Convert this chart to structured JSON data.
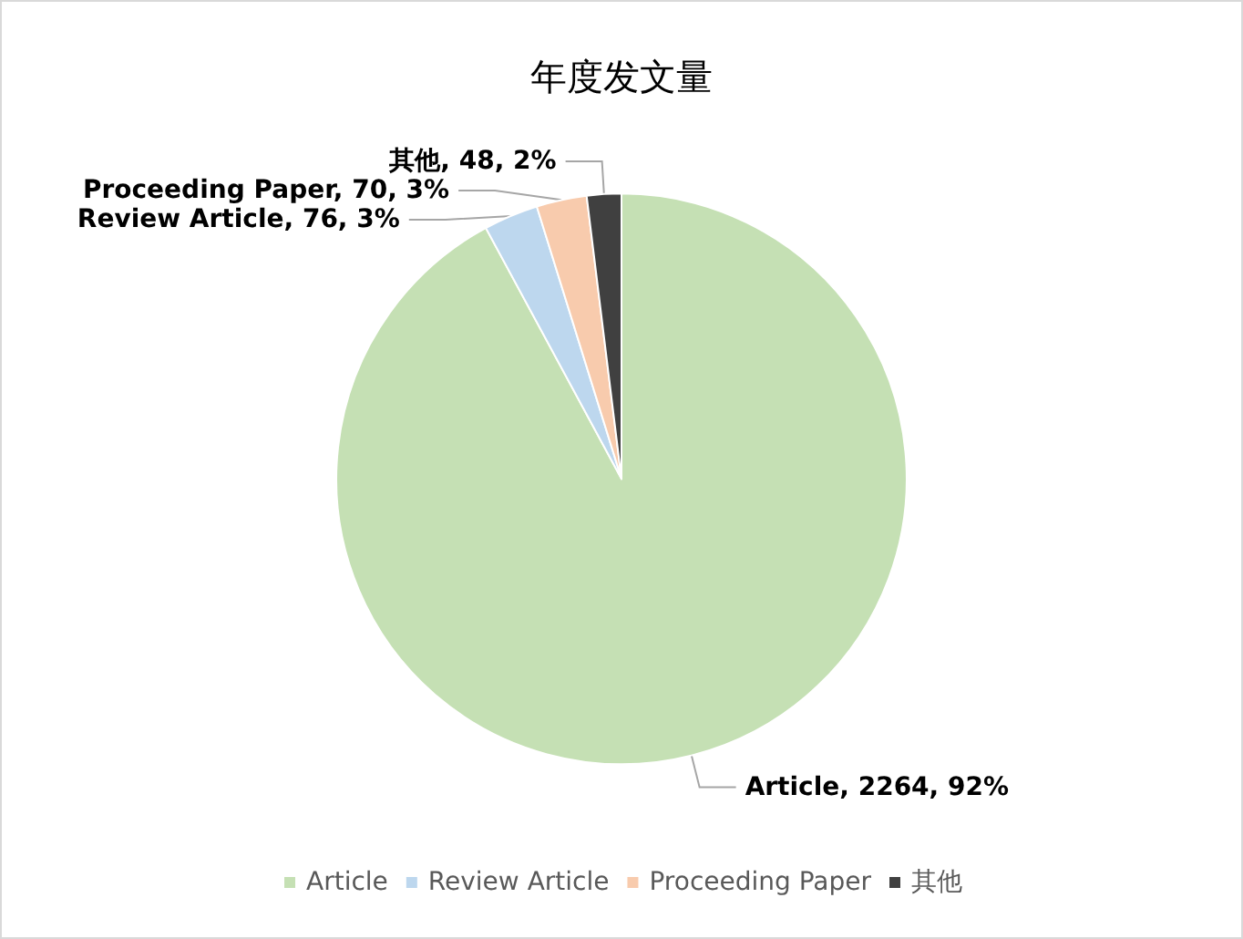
{
  "chart_data": {
    "type": "pie",
    "title": "年度发文量",
    "categories": [
      "Article",
      "Review Article",
      "Proceeding Paper",
      "其他"
    ],
    "values": [
      2264,
      76,
      70,
      48
    ],
    "colors": [
      "#c5e0b4",
      "#bdd7ee",
      "#f8cbad",
      "#404040"
    ],
    "value_labels": [
      "Article, 2264, 92%",
      "Review Article, 76, 3%",
      "Proceeding Paper, 70, 3%",
      "其他, 48, 2%"
    ],
    "legend": "bottom"
  }
}
